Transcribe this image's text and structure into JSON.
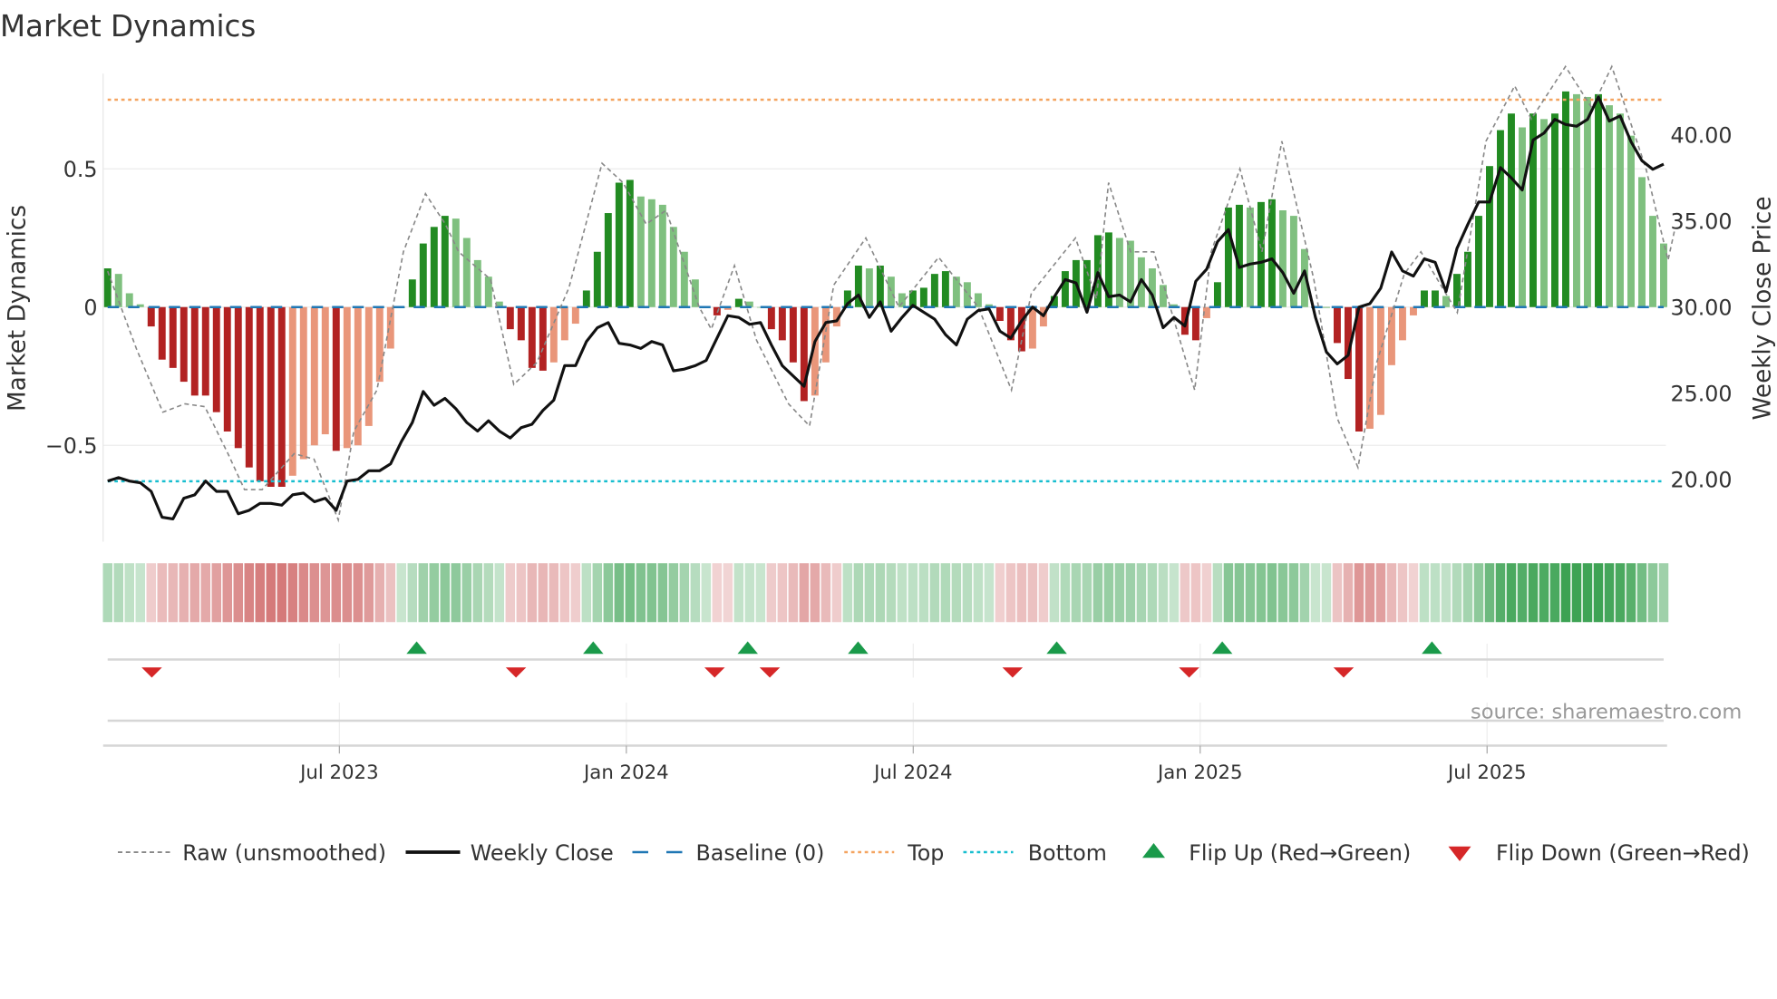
{
  "chart_data": {
    "type": "bar",
    "title": "Market Dynamics",
    "ylabel": "Market Dynamics",
    "y2label": "Weekly Close Price",
    "ylim": [
      -0.85,
      0.85
    ],
    "y2lim": [
      17,
      43.9
    ],
    "yticks": [
      {
        "v": 0.5,
        "label": "0.5"
      },
      {
        "v": 0,
        "label": "0"
      },
      {
        "v": -0.5,
        "label": "−0.5"
      }
    ],
    "y2ticks": [
      {
        "v": 40,
        "label": "40.00"
      },
      {
        "v": 35,
        "label": "35.00"
      },
      {
        "v": 30,
        "label": "30.00"
      },
      {
        "v": 25,
        "label": "25.00"
      },
      {
        "v": 20,
        "label": "20.00"
      }
    ],
    "xticks": [
      {
        "week": 21,
        "label": "Jul 2023"
      },
      {
        "week": 47,
        "label": "Jan 2024"
      },
      {
        "week": 73,
        "label": "Jul 2024"
      },
      {
        "week": 99,
        "label": "Jan 2025"
      },
      {
        "week": 125,
        "label": "Jul 2025"
      }
    ],
    "weeks_total": 142,
    "top": 0.75,
    "bottom": -0.63,
    "baseline": 0,
    "smoothed": [
      0.14,
      0.12,
      0.05,
      0.01,
      -0.07,
      -0.19,
      -0.22,
      -0.27,
      -0.32,
      -0.32,
      -0.38,
      -0.45,
      -0.51,
      -0.58,
      -0.63,
      -0.65,
      -0.65,
      -0.61,
      -0.55,
      -0.5,
      -0.46,
      -0.52,
      -0.51,
      -0.5,
      -0.43,
      -0.27,
      -0.15,
      0.0,
      0.1,
      0.23,
      0.29,
      0.33,
      0.32,
      0.25,
      0.17,
      0.11,
      0.02,
      -0.08,
      -0.12,
      -0.22,
      -0.23,
      -0.2,
      -0.12,
      -0.06,
      0.06,
      0.2,
      0.34,
      0.45,
      0.46,
      0.4,
      0.39,
      0.37,
      0.29,
      0.2,
      0.1,
      0.0,
      -0.03,
      -0.01,
      0.03,
      0.02,
      0.0,
      -0.08,
      -0.12,
      -0.2,
      -0.34,
      -0.32,
      -0.2,
      -0.07,
      0.06,
      0.15,
      0.14,
      0.15,
      0.11,
      0.05,
      0.06,
      0.07,
      0.12,
      0.13,
      0.11,
      0.09,
      0.05,
      0.01,
      -0.05,
      -0.12,
      -0.16,
      -0.15,
      -0.07,
      0.04,
      0.13,
      0.17,
      0.17,
      0.26,
      0.27,
      0.25,
      0.24,
      0.18,
      0.14,
      0.08,
      0.01,
      -0.1,
      -0.12,
      -0.04,
      0.09,
      0.36,
      0.37,
      0.36,
      0.38,
      0.39,
      0.35,
      0.33,
      0.21,
      0.0,
      0.0,
      -0.13,
      -0.26,
      -0.45,
      -0.44,
      -0.39,
      -0.21,
      -0.12,
      -0.03,
      0.06,
      0.06,
      0.04,
      0.12,
      0.2,
      0.33,
      0.51,
      0.64,
      0.7,
      0.65,
      0.7,
      0.68,
      0.7,
      0.78,
      0.77,
      0.76,
      0.77,
      0.73,
      0.7,
      0.62,
      0.47,
      0.33,
      0.23
    ],
    "raw": [
      [
        0,
        0.13
      ],
      [
        2.6,
        -0.15
      ],
      [
        5,
        -0.38
      ],
      [
        7,
        -0.35
      ],
      [
        8.8,
        -0.36
      ],
      [
        10.9,
        -0.53
      ],
      [
        12.4,
        -0.66
      ],
      [
        14,
        -0.66
      ],
      [
        16.9,
        -0.53
      ],
      [
        18.7,
        -0.55
      ],
      [
        20.9,
        -0.77
      ],
      [
        22.3,
        -0.45
      ],
      [
        24.4,
        -0.3
      ],
      [
        26.8,
        0.2
      ],
      [
        28.8,
        0.41
      ],
      [
        30.6,
        0.3
      ],
      [
        31.8,
        0.2
      ],
      [
        34.7,
        0.1
      ],
      [
        36.8,
        -0.28
      ],
      [
        38.9,
        -0.2
      ],
      [
        41.8,
        0.07
      ],
      [
        44.8,
        0.52
      ],
      [
        46.7,
        0.45
      ],
      [
        48.8,
        0.3
      ],
      [
        50.6,
        0.35
      ],
      [
        53.6,
        0.0
      ],
      [
        54.7,
        -0.08
      ],
      [
        56.8,
        0.15
      ],
      [
        58.8,
        -0.12
      ],
      [
        61.7,
        -0.35
      ],
      [
        63.6,
        -0.43
      ],
      [
        65.8,
        0.08
      ],
      [
        68.7,
        0.25
      ],
      [
        71.7,
        0.0
      ],
      [
        75.3,
        0.18
      ],
      [
        78.9,
        0.0
      ],
      [
        81.9,
        -0.3
      ],
      [
        83.7,
        0.05
      ],
      [
        87.7,
        0.25
      ],
      [
        89.6,
        0.03
      ],
      [
        90.7,
        0.45
      ],
      [
        92.7,
        0.2
      ],
      [
        94.8,
        0.2
      ],
      [
        98.5,
        -0.3
      ],
      [
        100,
        0.2
      ],
      [
        102.6,
        0.5
      ],
      [
        104.6,
        0.2
      ],
      [
        106.4,
        0.6
      ],
      [
        109.3,
        0.1
      ],
      [
        111.4,
        -0.4
      ],
      [
        113.3,
        -0.58
      ],
      [
        115,
        -0.2
      ],
      [
        117.5,
        0.12
      ],
      [
        119,
        0.2
      ],
      [
        122.3,
        -0.02
      ],
      [
        124.9,
        0.6
      ],
      [
        127.5,
        0.8
      ],
      [
        129,
        0.68
      ],
      [
        132.1,
        0.87
      ],
      [
        134.5,
        0.72
      ],
      [
        136.3,
        0.87
      ],
      [
        139.4,
        0.5
      ],
      [
        141.4,
        0.17
      ],
      [
        142,
        0.28
      ]
    ],
    "close": [
      19.9,
      20.1,
      19.9,
      19.8,
      19.3,
      17.8,
      17.7,
      18.9,
      19.1,
      19.9,
      19.3,
      19.3,
      18.0,
      18.2,
      18.6,
      18.6,
      18.5,
      19.1,
      19.2,
      18.7,
      18.9,
      18.2,
      19.9,
      20.0,
      20.5,
      20.5,
      20.9,
      22.2,
      23.3,
      25.1,
      24.3,
      24.7,
      24.1,
      23.3,
      22.8,
      23.4,
      22.8,
      22.4,
      23.0,
      23.2,
      24.0,
      24.6,
      26.6,
      26.6,
      28.0,
      28.8,
      29.1,
      27.9,
      27.8,
      27.6,
      28.0,
      27.8,
      26.3,
      26.4,
      26.6,
      26.9,
      28.2,
      29.5,
      29.4,
      29.0,
      29.1,
      27.8,
      26.6,
      26.0,
      25.4,
      28.0,
      29.1,
      29.2,
      30.2,
      30.7,
      29.4,
      30.3,
      28.6,
      29.4,
      30.1,
      29.7,
      29.3,
      28.4,
      27.8,
      29.3,
      29.8,
      29.9,
      28.6,
      28.2,
      29.2,
      30.0,
      29.5,
      30.6,
      31.6,
      31.4,
      29.7,
      32.0,
      30.6,
      30.7,
      30.3,
      31.6,
      30.7,
      28.8,
      29.4,
      28.9,
      31.5,
      32.2,
      33.8,
      34.5,
      32.3,
      32.5,
      32.6,
      32.8,
      32.0,
      30.8,
      32.1,
      29.4,
      27.4,
      26.7,
      27.2,
      30.0,
      30.2,
      31.1,
      33.2,
      32.1,
      31.8,
      32.8,
      32.6,
      30.9,
      33.4,
      34.8,
      36.1,
      36.1,
      38.1,
      37.5,
      36.8,
      39.7,
      40.1,
      40.9,
      40.6,
      40.5,
      40.9,
      42.2,
      40.8,
      41.1,
      39.6,
      38.5,
      38.0,
      38.3
    ],
    "flip_up_weeks": [
      28,
      44,
      58,
      68,
      86,
      101,
      120
    ],
    "flip_down_weeks": [
      4,
      37,
      55,
      60,
      82,
      98,
      112
    ],
    "legend": [
      {
        "key": "raw",
        "label": "Raw (unsmoothed)"
      },
      {
        "key": "close",
        "label": "Weekly Close"
      },
      {
        "key": "baseline",
        "label": "Baseline (0)"
      },
      {
        "key": "top",
        "label": "Top"
      },
      {
        "key": "bottom",
        "label": "Bottom"
      },
      {
        "key": "up",
        "label": "Flip Up (Red→Green)"
      },
      {
        "key": "down",
        "label": "Flip Down (Green→Red)"
      }
    ],
    "legend_position": "bottom",
    "source": "source: sharemaestro.com",
    "colors": {
      "green_dark": "#228b22",
      "green_light": "#7fc07f",
      "red_dark": "#b22222",
      "red_light": "#e9967a",
      "baseline": "#1f77b4",
      "top": "#f4a460",
      "bottom": "#17becf",
      "flip_up": "#1a9a4a",
      "flip_down": "#d62728"
    }
  }
}
